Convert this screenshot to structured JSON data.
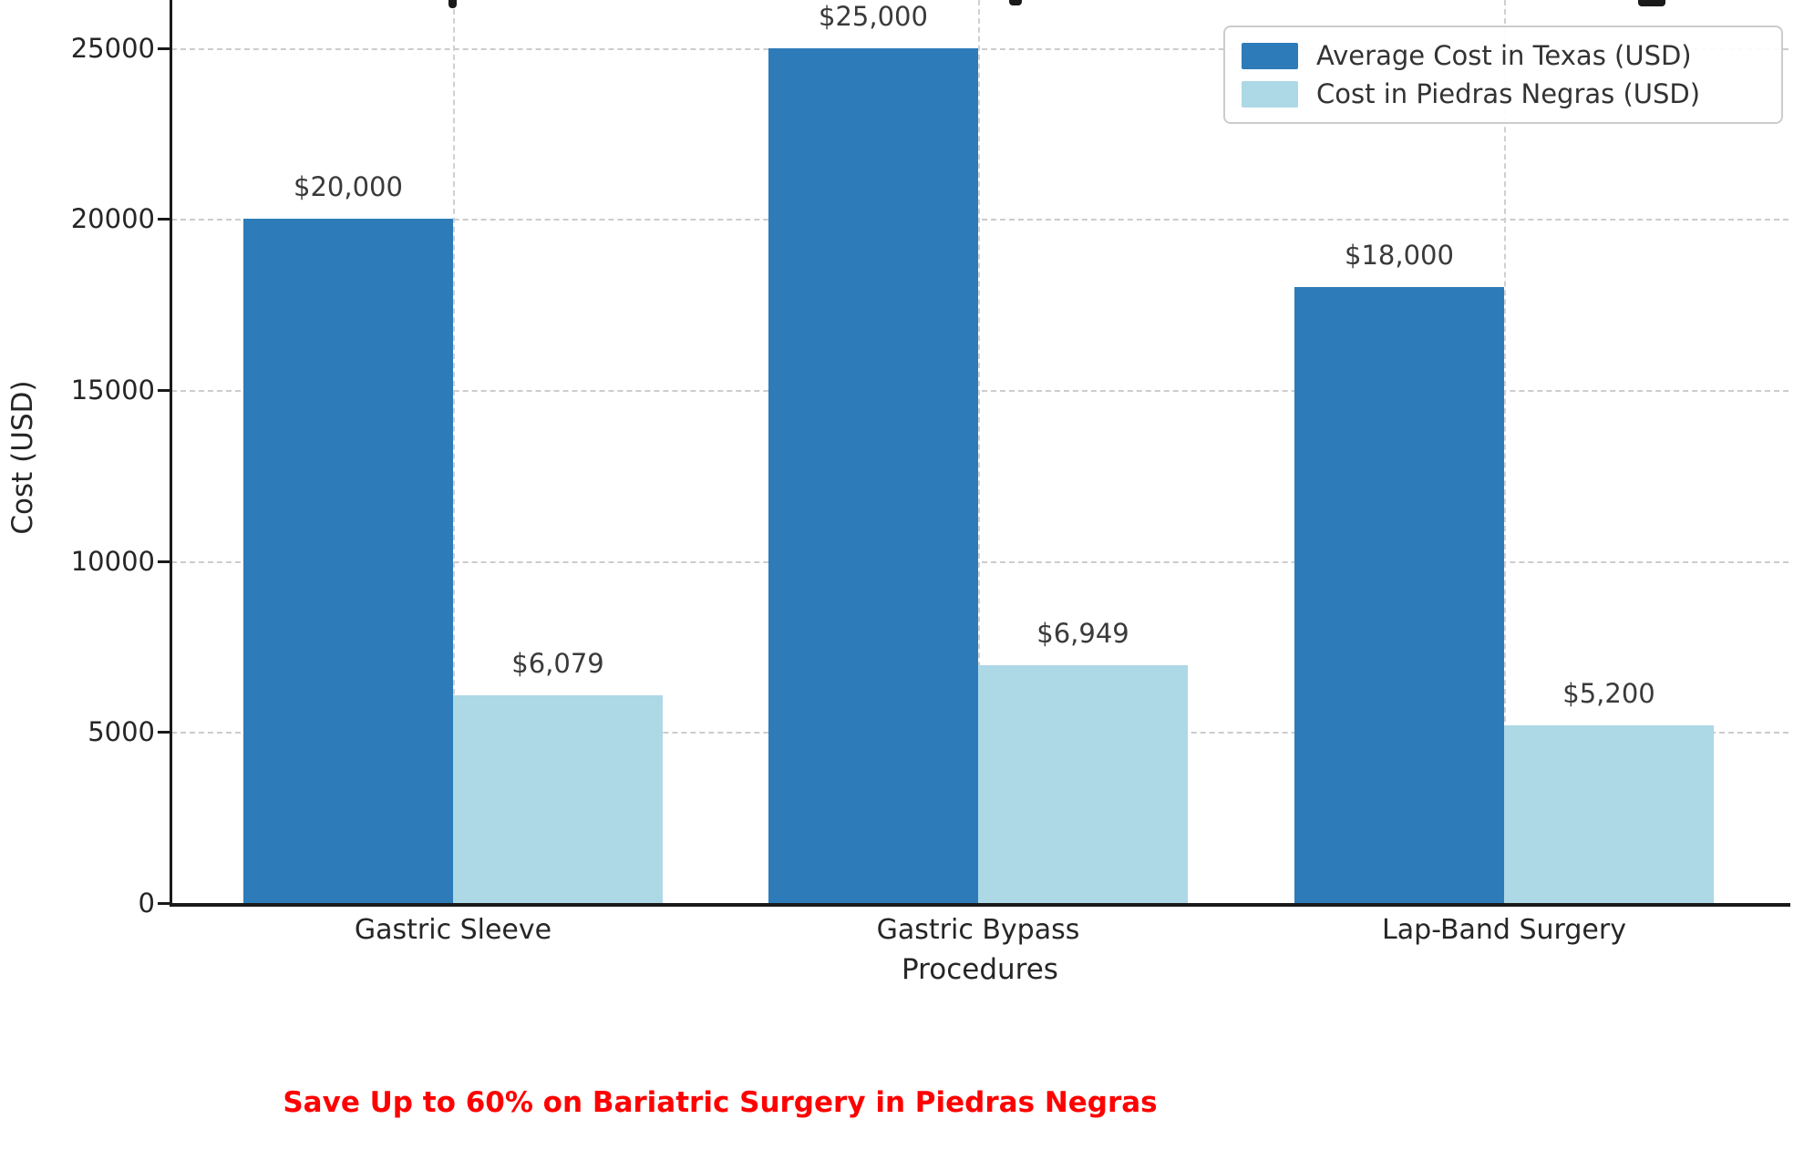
{
  "chart_data": {
    "type": "bar",
    "categories": [
      "Gastric Sleeve",
      "Gastric Bypass",
      "Lap-Band Surgery"
    ],
    "series": [
      {
        "name": "Average Cost in Texas (USD)",
        "color": "#2d7cb9",
        "values": [
          20000,
          25000,
          18000
        ],
        "value_labels": [
          "$20,000",
          "$25,000",
          "$18,000"
        ]
      },
      {
        "name": "Cost in Piedras Negras (USD)",
        "color": "#add8e6",
        "values": [
          6079,
          6949,
          5200
        ],
        "value_labels": [
          "$6,079",
          "$6,949",
          "$5,200"
        ]
      }
    ],
    "xlabel": "Procedures",
    "ylabel": "Cost (USD)",
    "yticks": [
      0,
      5000,
      10000,
      15000,
      20000,
      25000
    ],
    "ylim": [
      0,
      26400
    ],
    "grid": true,
    "legend_position": "upper right"
  },
  "annotation": {
    "text": "Save Up to 60% on Bariatric Surgery in Piedras Negras",
    "color": "#ff0000"
  }
}
